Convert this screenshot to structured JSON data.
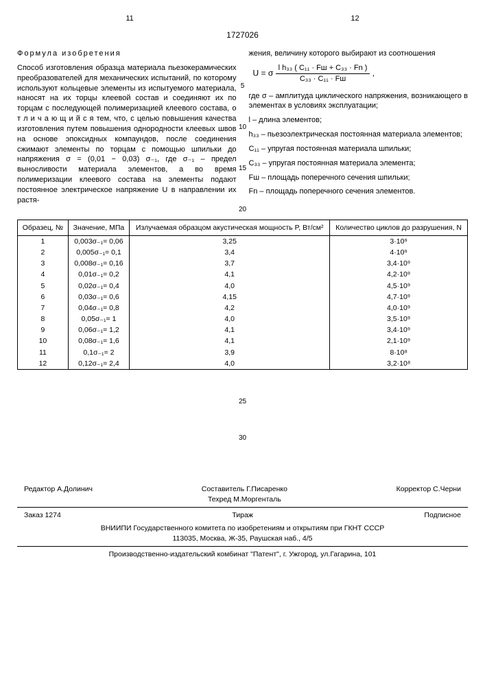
{
  "header": {
    "leftPage": "11",
    "rightPage": "12",
    "docNumber": "1727026"
  },
  "claim_title": "Формула изобретения",
  "left_text": "Способ изготовления образца материала пьезокерамических преобразователей для механических испытаний, по которому используют кольцевые элементы из испытуемого материала, наносят на их торцы клеевой состав и соединяют их по торцам с последующей полимеризацией клеевого состава, о т л и ч а ю щ и й с я тем, что, с целью повышения качества изготовления путем повышения однородности клеевых швов на основе эпоксидных компаундов, после соединения сжимают элементы по торцам с помощью шпильки до напряжения σ = (0,01 − 0,03) σ₋₁, где σ₋₁ – предел выносливости материала элементов, а во время полимеризации клеевого состава на элементы подают постоянное электрическое напряжение U в направлении их растя-",
  "right_top": "жения, величину которого выбирают из соотношения",
  "formula_lhs": "U = σ",
  "formula_num": "l h₃₃ ( C₁₁ · Fш + C₃₃ · Fn )",
  "formula_den": "C₃₃ · C₁₁ · Fш",
  "defs": [
    "где σ – амплитуда циклического напряжения, возникающего в элементах в условиях эксплуатации;",
    "l – длина элементов;",
    "h₃₃ – пьезоэлектрическая постоянная материала элементов;",
    "C₁₁ – упругая постоянная материала шпильки;",
    "C₃₃ – упругая постоянная материала элемента;",
    "Fш – площадь поперечного сечения шпильки;",
    "Fn – площадь поперечного сечения элементов."
  ],
  "line_markers": [
    "5",
    "10",
    "15",
    "20"
  ],
  "table": {
    "headers": [
      "Образец, №",
      "Значение, МПа",
      "Излучаемая образцом акустическая мощность P, Вт/см²",
      "Количество циклов до разрушения, N"
    ],
    "rows": [
      [
        "1",
        "0,003σ₋₁= 0,06",
        "3,25",
        "3·10⁹"
      ],
      [
        "2",
        "0,005σ₋₁= 0,1",
        "3,4",
        "4·10⁹"
      ],
      [
        "3",
        "0,008σ₋₁= 0,16",
        "3,7",
        "3,4·10⁹"
      ],
      [
        "4",
        "0,01σ₋₁= 0,2",
        "4,1",
        "4,2·10⁹"
      ],
      [
        "5",
        "0,02σ₋₁= 0,4",
        "4,0",
        "4,5·10⁹"
      ],
      [
        "6",
        "0,03σ₋₁= 0,6",
        "4,15",
        "4,7·10⁹"
      ],
      [
        "7",
        "0,04σ₋₁= 0,8",
        "4,2",
        "4,0·10⁹"
      ],
      [
        "8",
        "0,05σ₋₁= 1",
        "4,0",
        "3,5·10⁹"
      ],
      [
        "9",
        "0,06σ₋₁= 1,2",
        "4,1",
        "3,4·10⁹"
      ],
      [
        "10",
        "0,08σ₋₁= 1,6",
        "4,1",
        "2,1·10⁹"
      ],
      [
        "11",
        "0,1σ₋₁= 2",
        "3,9",
        "8·10⁸"
      ],
      [
        "12",
        "0,12σ₋₁= 2,4",
        "4,0",
        "3,2·10⁸"
      ]
    ]
  },
  "markers2": [
    "25",
    "30"
  ],
  "credits": {
    "editor": "Редактор А.Долинич",
    "compiler": "Составитель Г.Писаренко",
    "tech": "Техред М.Моргенталь",
    "corrector": "Корректор С.Черни",
    "order": "Заказ 1274",
    "tirazh": "Тираж",
    "sub": "Подписное",
    "org1": "ВНИИПИ Государственного комитета по изобретениям и открытиям при ГКНТ СССР",
    "addr1": "113035, Москва, Ж-35, Раушская наб., 4/5",
    "org2": "Производственно-издательский комбинат \"Патент\", г. Ужгород, ул.Гагарина, 101"
  }
}
